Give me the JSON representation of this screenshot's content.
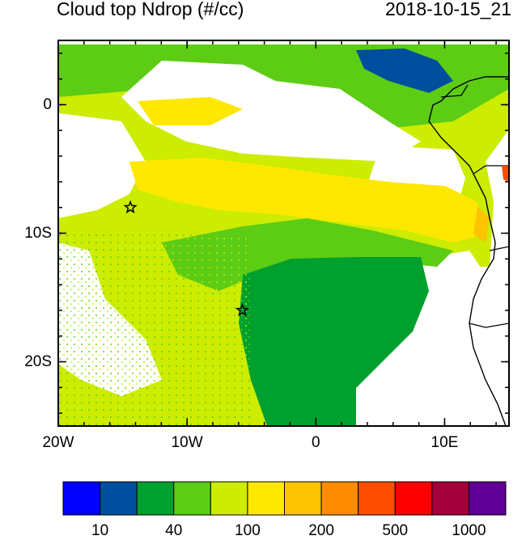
{
  "header": {
    "title": "Cloud top Ndrop (#/cc)",
    "timestamp": "2018-10-15_21"
  },
  "map": {
    "lon_range": [
      -20,
      15
    ],
    "lat_range": [
      -25,
      5
    ],
    "x_ticks": [
      {
        "lon": -20,
        "label": "20W"
      },
      {
        "lon": -10,
        "label": "10W"
      },
      {
        "lon": 0,
        "label": "0"
      },
      {
        "lon": 10,
        "label": "10E"
      }
    ],
    "y_ticks": [
      {
        "lat": 0,
        "label": "0"
      },
      {
        "lat": -10,
        "label": "10S"
      },
      {
        "lat": -20,
        "label": "20S"
      }
    ],
    "markers": [
      {
        "name": "star-marker-1",
        "lon": -14.4,
        "lat": -8.0
      },
      {
        "name": "star-marker-2",
        "lon": -5.7,
        "lat": -16.0
      }
    ]
  },
  "colorbar": {
    "colors": [
      "#0000ff",
      "#004e9e",
      "#00a02e",
      "#5ccc14",
      "#ccec00",
      "#ffe800",
      "#ffc300",
      "#ff8c00",
      "#ff4d00",
      "#ff0000",
      "#a3003a",
      "#5e0096"
    ],
    "labels": [
      {
        "boundary": 1,
        "text": "10"
      },
      {
        "boundary": 3,
        "text": "40"
      },
      {
        "boundary": 5,
        "text": "100"
      },
      {
        "boundary": 7,
        "text": "200"
      },
      {
        "boundary": 9,
        "text": "500"
      },
      {
        "boundary": 11,
        "text": "1000"
      }
    ]
  }
}
